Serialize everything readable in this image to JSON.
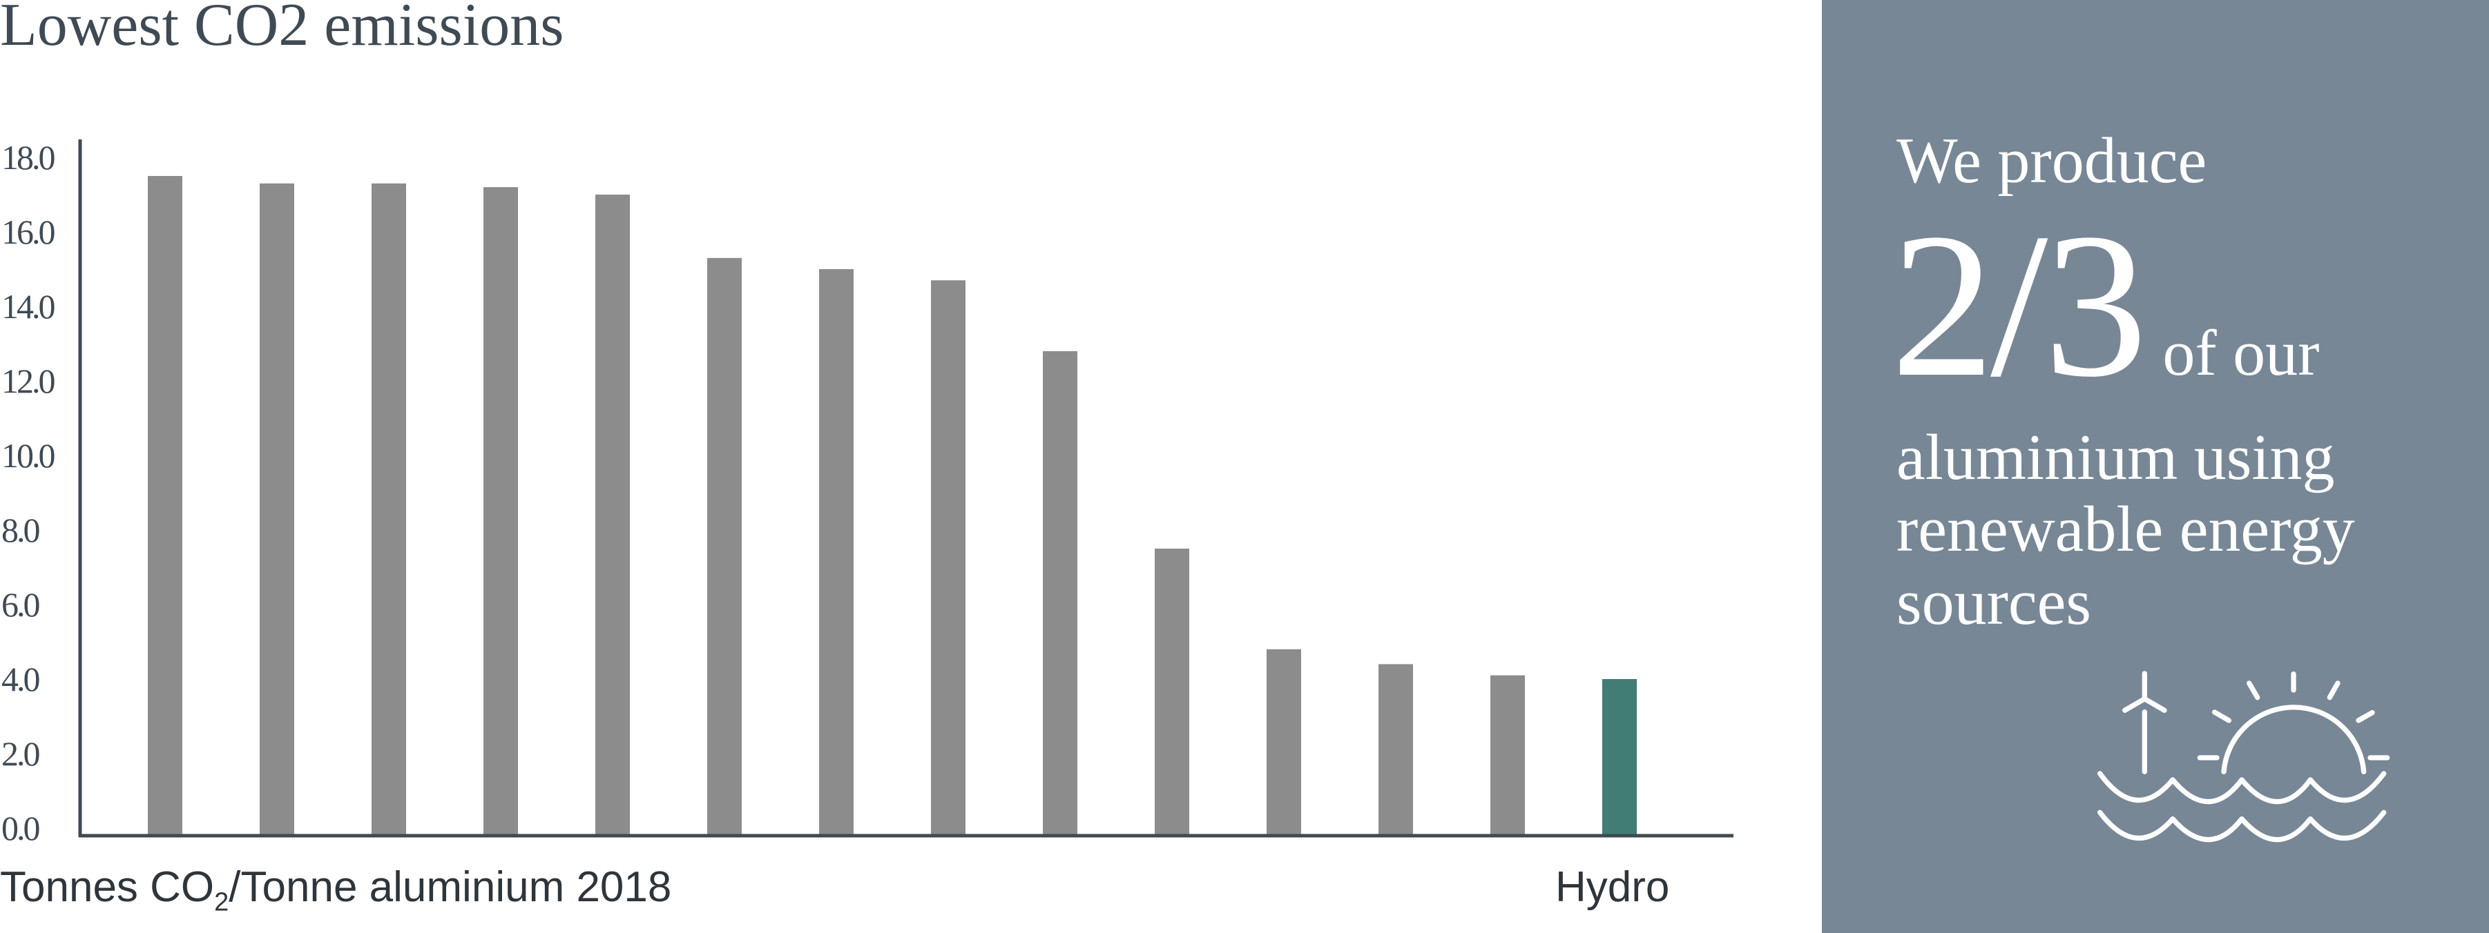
{
  "title": "Lowest CO2 emissions",
  "chart_data": {
    "type": "bar",
    "title": "Lowest CO2 emissions",
    "xlabel": "Tonnes CO2/Tonne aluminium 2018",
    "xlabel_parts": {
      "pre": "Tonnes CO",
      "sub": "2",
      "post": "/Tonne aluminium 2018"
    },
    "ylabel": "",
    "ylim": [
      0,
      18
    ],
    "yticks": [
      "0.0",
      "2.0",
      "4.0",
      "6.0",
      "8.0",
      "10.0",
      "12.0",
      "14.0",
      "16.0",
      "18.0"
    ],
    "categories": [
      "",
      "",
      "",
      "",
      "",
      "",
      "",
      "",
      "",
      "",
      "",
      "",
      "",
      "Hydro"
    ],
    "values": [
      17.5,
      17.3,
      17.3,
      17.2,
      17.0,
      15.3,
      15.0,
      14.7,
      12.8,
      7.5,
      4.8,
      4.4,
      4.1,
      4.0
    ],
    "highlight_label": "Hydro",
    "colors": {
      "bar": "#8c8c8c",
      "highlight": "#417d74",
      "axis": "#3f4a54"
    },
    "grid": false
  },
  "panel": {
    "background": "#778796",
    "line1": "We produce",
    "big": "2/3",
    "line2": "of our",
    "line3": "aluminium using",
    "line4": "renewable energy",
    "line5": "sources",
    "icon": "wind-sun-water-icon"
  }
}
